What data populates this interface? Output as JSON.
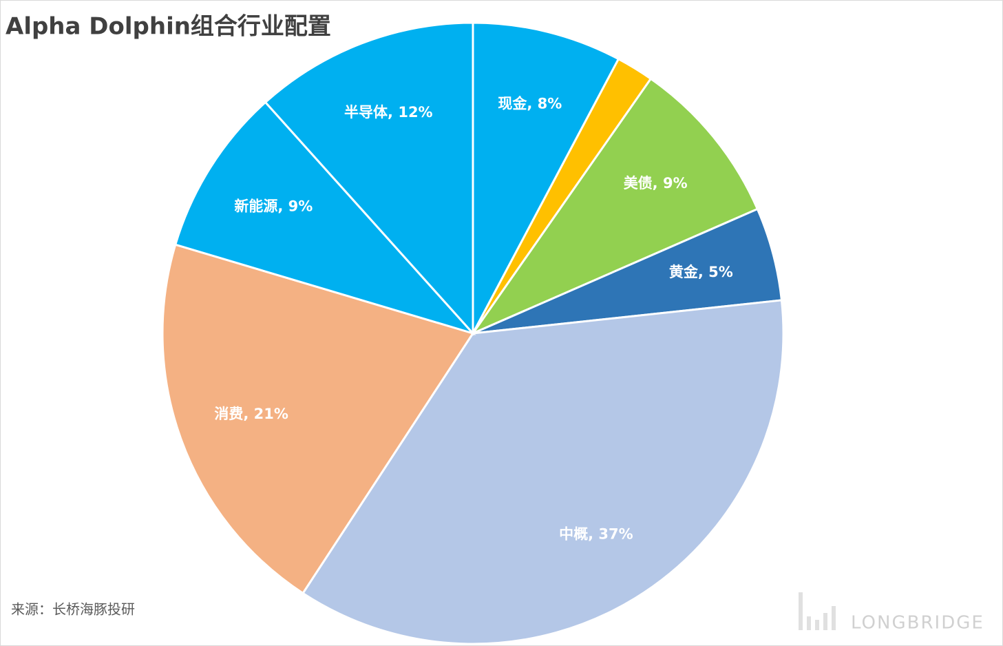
{
  "title": "Alpha Dolphin组合行业配置",
  "source": "来源：长桥海豚投研",
  "brand": "LONGBRIDGE",
  "chart_data": {
    "type": "pie",
    "labels": [
      "现金, 8%",
      null,
      "美债, 9%",
      "黄金, 5%",
      "中概, 37%",
      "消费, 21%",
      "新能源, 9%",
      "半导体, 12%"
    ],
    "values": [
      8,
      2,
      9,
      5,
      37,
      21,
      9,
      12
    ],
    "colors": [
      "#00b0f0",
      "#ffc000",
      "#92d050",
      "#2e75b6",
      "#b4c7e7",
      "#f4b183",
      "#00b0f0",
      "#00b0f0"
    ]
  }
}
